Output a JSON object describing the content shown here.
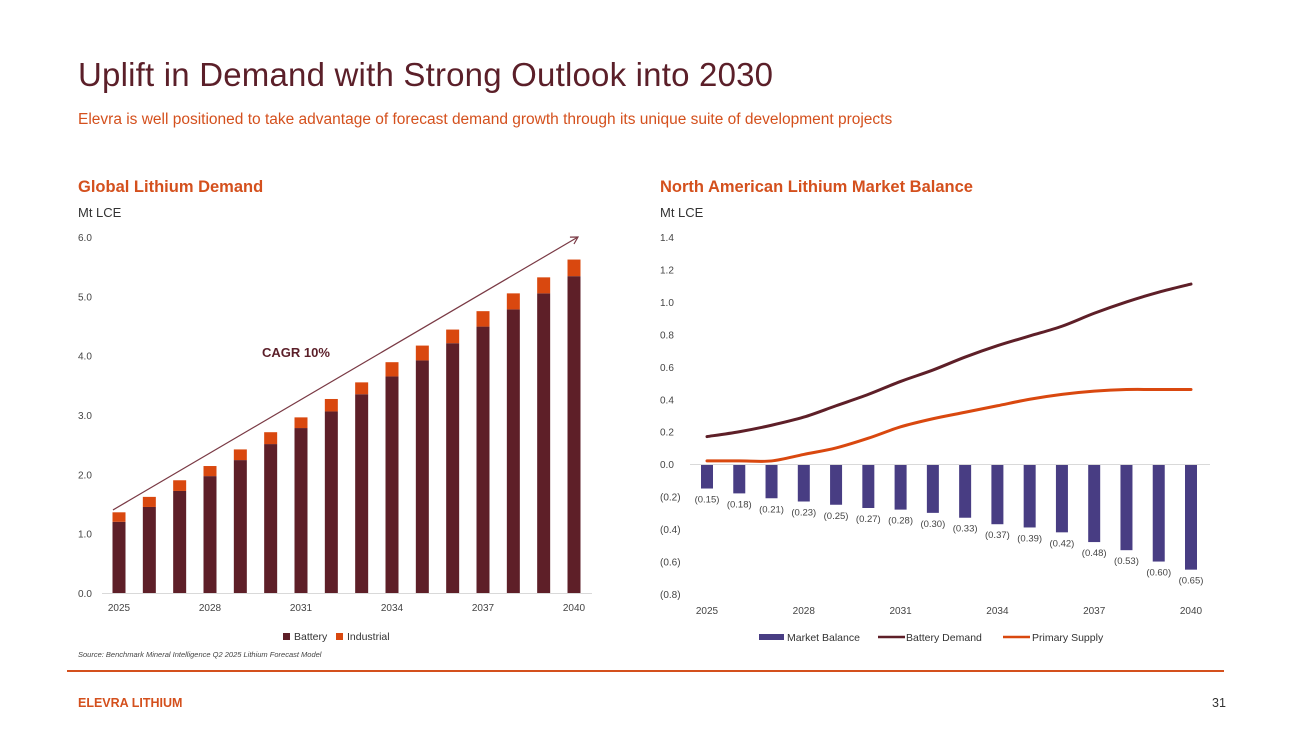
{
  "header": {
    "title": "Uplift in Demand with Strong Outlook into 2030",
    "subtitle": "Elevra is well positioned to take advantage of forecast demand growth through its unique suite of development projects"
  },
  "footer": {
    "source": "Source: Benchmark Mineral Intelligence Q2 2025 Lithium Forecast Model",
    "brand": "ELEVRA LITHIUM",
    "page_number": "31"
  },
  "colors": {
    "battery": "#5e1f28",
    "industrial": "#d9480f",
    "market_balance": "#483d83",
    "battery_demand": "#5e1f28",
    "primary_supply": "#d9480f",
    "accent": "#d4501d"
  },
  "chart_data": [
    {
      "type": "bar",
      "stacked": true,
      "title": "Global Lithium Demand",
      "ylabel": "Mt LCE",
      "xlabel": "",
      "ylim": [
        0,
        6
      ],
      "yticks": [
        "0.0",
        "1.0",
        "2.0",
        "3.0",
        "4.0",
        "5.0",
        "6.0"
      ],
      "categories": [
        "2025",
        "2026",
        "2027",
        "2028",
        "2029",
        "2030",
        "2031",
        "2032",
        "2033",
        "2034",
        "2035",
        "2036",
        "2037",
        "2038",
        "2039",
        "2040"
      ],
      "xtick_labels": [
        "2025",
        "2028",
        "2031",
        "2034",
        "2037",
        "2040"
      ],
      "series": [
        {
          "name": "Battery",
          "values": [
            1.2,
            1.45,
            1.72,
            1.97,
            2.24,
            2.51,
            2.78,
            3.06,
            3.35,
            3.65,
            3.92,
            4.21,
            4.49,
            4.78,
            5.05,
            5.34
          ]
        },
        {
          "name": "Industrial",
          "values": [
            0.16,
            0.17,
            0.18,
            0.17,
            0.18,
            0.2,
            0.18,
            0.21,
            0.2,
            0.24,
            0.25,
            0.23,
            0.26,
            0.27,
            0.27,
            0.28
          ]
        }
      ],
      "annotation": {
        "text": "CAGR 10%",
        "arrow_from": [
          "2025",
          1.4
        ],
        "arrow_to": [
          "2040",
          6.0
        ]
      },
      "legend": {
        "position": "bottom",
        "entries": [
          "Battery",
          "Industrial"
        ]
      },
      "grid": false
    },
    {
      "type": "bar+line",
      "title": "North American Lithium Market Balance",
      "ylabel": "Mt LCE",
      "xlabel": "",
      "ylim": [
        -0.8,
        1.4
      ],
      "yticks": [
        "(0.8)",
        "(0.6)",
        "(0.4)",
        "(0.2)",
        "0.0",
        "0.2",
        "0.4",
        "0.6",
        "0.8",
        "1.0",
        "1.2",
        "1.4"
      ],
      "ytick_values": [
        -0.8,
        -0.6,
        -0.4,
        -0.2,
        0,
        0.2,
        0.4,
        0.6,
        0.8,
        1.0,
        1.2,
        1.4
      ],
      "categories": [
        "2025",
        "2026",
        "2027",
        "2028",
        "2029",
        "2030",
        "2031",
        "2032",
        "2033",
        "2034",
        "2035",
        "2036",
        "2037",
        "2038",
        "2039",
        "2040"
      ],
      "xtick_labels": [
        "2025",
        "2028",
        "2031",
        "2034",
        "2037",
        "2040"
      ],
      "series": [
        {
          "name": "Market Balance",
          "kind": "bar",
          "values": [
            -0.15,
            -0.18,
            -0.21,
            -0.23,
            -0.25,
            -0.27,
            -0.28,
            -0.3,
            -0.33,
            -0.37,
            -0.39,
            -0.42,
            -0.48,
            -0.53,
            -0.6,
            -0.65
          ],
          "labels": [
            "(0.15)",
            "(0.18)",
            "(0.21)",
            "(0.23)",
            "(0.25)",
            "(0.27)",
            "(0.28)",
            "(0.30)",
            "(0.33)",
            "(0.37)",
            "(0.39)",
            "(0.42)",
            "(0.48)",
            "(0.53)",
            "(0.60)",
            "(0.65)"
          ]
        },
        {
          "name": "Battery Demand",
          "kind": "line",
          "values": [
            0.17,
            0.2,
            0.24,
            0.29,
            0.36,
            0.43,
            0.51,
            0.58,
            0.66,
            0.73,
            0.79,
            0.85,
            0.93,
            1.0,
            1.06,
            1.11
          ]
        },
        {
          "name": "Primary Supply",
          "kind": "line",
          "values": [
            0.02,
            0.02,
            0.02,
            0.06,
            0.1,
            0.16,
            0.23,
            0.28,
            0.32,
            0.36,
            0.4,
            0.43,
            0.45,
            0.46,
            0.46,
            0.46
          ]
        }
      ],
      "legend": {
        "position": "bottom",
        "entries": [
          "Market Balance",
          "Battery Demand",
          "Primary Supply"
        ]
      },
      "grid": false
    }
  ]
}
